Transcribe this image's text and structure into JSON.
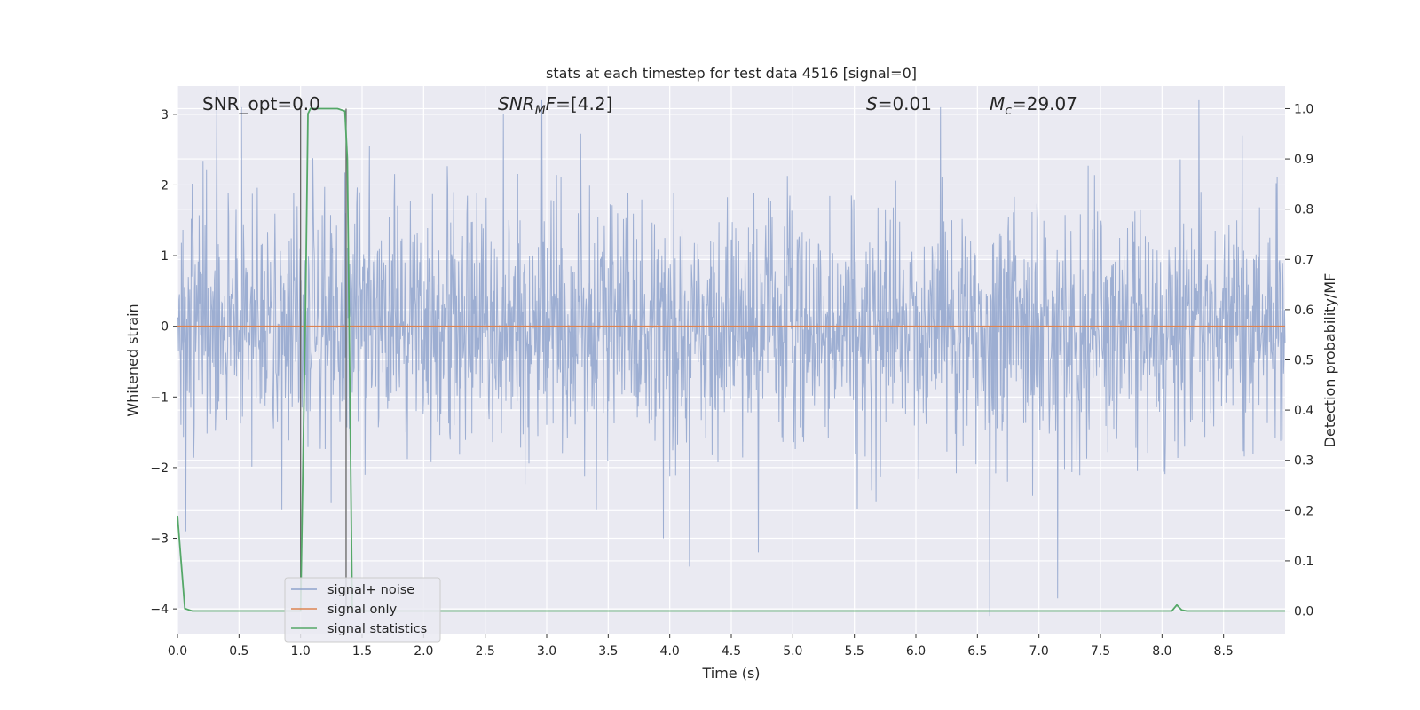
{
  "colors": {
    "background": "#eaeaf2",
    "grid": "#ffffff",
    "noise": "#8fa3cc",
    "signal": "#dd8452",
    "statistics": "#55a868",
    "vline": "#666666"
  },
  "chart_data": {
    "type": "line",
    "title": "stats at each timestep for test data 4516 [signal=0]",
    "xlabel": "Time (s)",
    "ylabel": "Whitened strain",
    "y2label": "Detection probability/MF",
    "xlim": [
      0.0,
      9.0
    ],
    "ylim": [
      -4.35,
      3.4
    ],
    "y2lim": [
      -0.045,
      1.045
    ],
    "xticks": [
      "0.0",
      "0.5",
      "1.0",
      "1.5",
      "2.0",
      "2.5",
      "3.0",
      "3.5",
      "4.0",
      "4.5",
      "5.0",
      "5.5",
      "6.0",
      "6.5",
      "7.0",
      "7.5",
      "8.0",
      "8.5"
    ],
    "yticks": [
      "3",
      "2",
      "1",
      "0",
      "−1",
      "−2",
      "−3",
      "−4"
    ],
    "y2ticks": [
      "1.0",
      "0.9",
      "0.8",
      "0.7",
      "0.6",
      "0.5",
      "0.4",
      "0.3",
      "0.2",
      "0.1",
      "0.0"
    ],
    "grid": true,
    "legend_position": "lower-left",
    "annotations": {
      "snr_opt": "SNR_opt=0.0",
      "snr_mf_main": "SNR",
      "snr_mf_sub": "M",
      "snr_mf_rest": "F=[4.2]",
      "s_main": "S",
      "s_rest": "=0.01",
      "mc_main": "M",
      "mc_sub": "c",
      "mc_rest": "=29.07"
    },
    "vlines": [
      1.0,
      1.37
    ],
    "noise": {
      "seed": 4516,
      "dt": 0.004,
      "sigma": 0.85,
      "spikes": [
        [
          0.32,
          3.35
        ],
        [
          0.07,
          -2.9
        ],
        [
          0.52,
          3.1
        ],
        [
          2.96,
          3.2
        ],
        [
          4.16,
          -3.4
        ],
        [
          4.72,
          -3.2
        ],
        [
          6.6,
          -4.1
        ],
        [
          7.15,
          -3.85
        ],
        [
          8.3,
          3.2
        ],
        [
          1.25,
          -2.5
        ],
        [
          3.95,
          -3.0
        ],
        [
          6.2,
          3.1
        ],
        [
          2.65,
          3.0
        ],
        [
          8.65,
          2.7
        ],
        [
          0.85,
          -2.6
        ]
      ]
    },
    "series": [
      {
        "name": "signal+ noise",
        "axis": "left",
        "kind": "noise"
      },
      {
        "name": "signal only",
        "axis": "left",
        "x": [
          0.0,
          9.0
        ],
        "y": [
          0.0,
          0.0
        ]
      },
      {
        "name": "signal statistics",
        "axis": "right",
        "x": [
          0.0,
          0.06,
          0.12,
          0.18,
          0.98,
          1.0,
          1.04,
          1.06,
          1.08,
          1.2,
          1.3,
          1.36,
          1.38,
          1.42,
          1.44,
          8.0,
          8.08,
          8.12,
          8.16,
          8.2,
          9.0
        ],
        "y": [
          0.19,
          0.005,
          0.0,
          0.0,
          0.0,
          0.0,
          0.6,
          0.99,
          1.0,
          1.0,
          1.0,
          0.995,
          0.9,
          0.0,
          0.0,
          0.0,
          0.0,
          0.012,
          0.002,
          0.0,
          0.0
        ]
      }
    ]
  }
}
